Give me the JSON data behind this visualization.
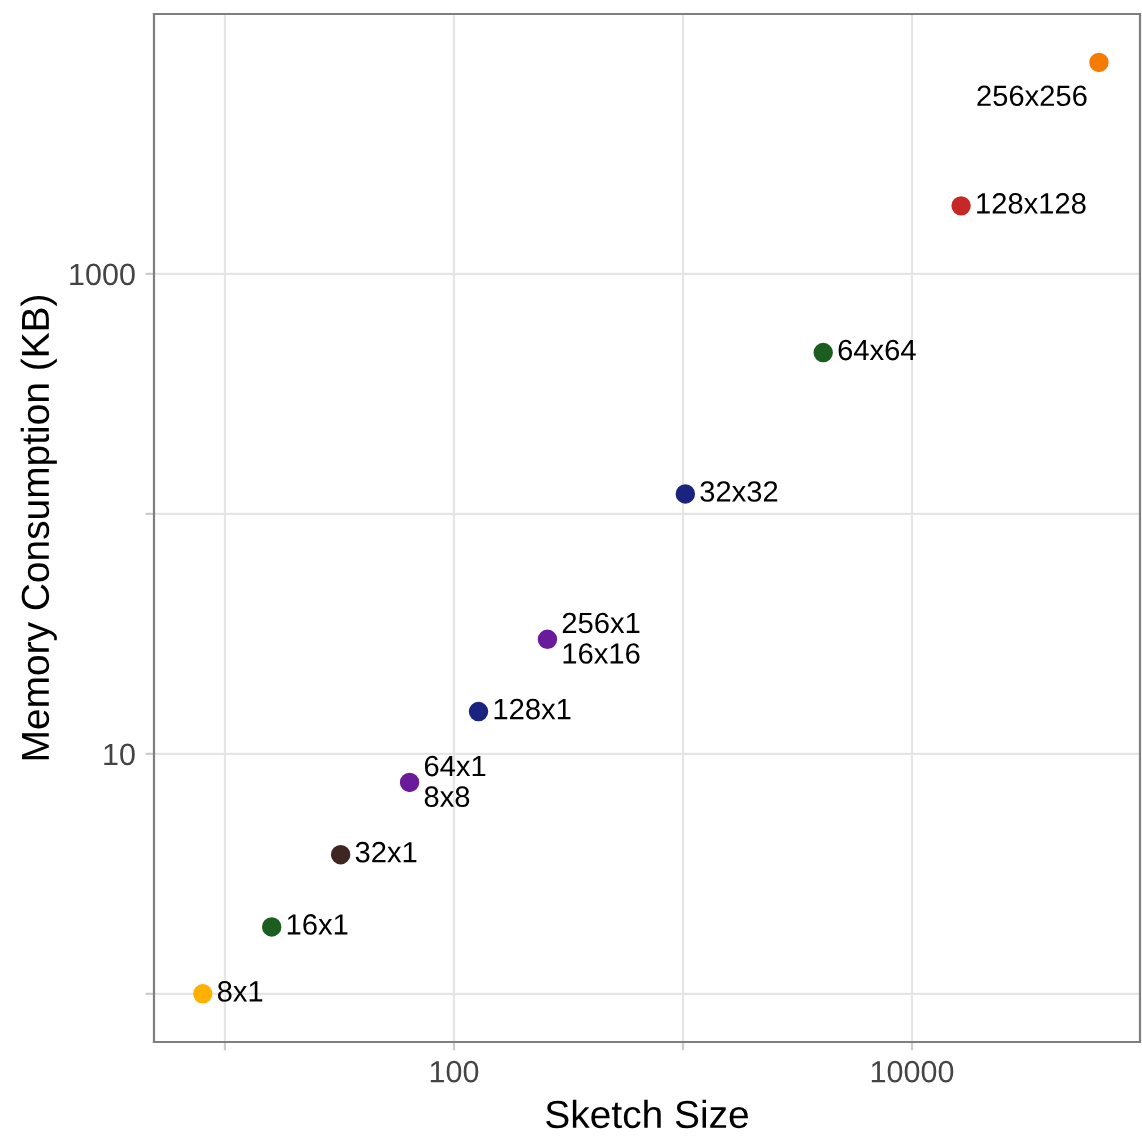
{
  "chart_data": {
    "type": "scatter",
    "xlabel": "Sketch Size",
    "ylabel": "Memory Consumption (KB)",
    "log": "xy",
    "grid": true,
    "marker": "circle",
    "xlim": [
      4.9,
      99000
    ],
    "ylim": [
      0.63,
      12100
    ],
    "xticks": [
      {
        "value": 10,
        "label": null
      },
      100,
      {
        "value": 1000,
        "label": null
      },
      10000
    ],
    "yticks": [
      {
        "value": 1,
        "label": null
      },
      10,
      {
        "value": 100,
        "label": null
      },
      1000
    ],
    "x": [
      8,
      16,
      32,
      64,
      128,
      256,
      1024,
      4096,
      16384,
      65536
    ],
    "values": [
      1,
      1.9,
      3.8,
      7.6,
      15,
      30,
      121,
      470,
      1920,
      7600
    ],
    "colors": [
      "#ffb000",
      "#1b5e20",
      "#3e2723",
      "#6a1b9a",
      "#1a237e",
      "#6a1b9a",
      "#1a237e",
      "#1b5e20",
      "#c62828",
      "#f57c00"
    ],
    "annotations": [
      {
        "text": "8x1",
        "x": 8,
        "y": 1
      },
      {
        "text": "16x1",
        "x": 16,
        "y": 1.9
      },
      {
        "text": "32x1",
        "x": 32,
        "y": 3.8
      },
      {
        "text": "64x1",
        "x": 64,
        "y": 7.6
      },
      {
        "text": "8x8",
        "x": 64,
        "y": 7.6
      },
      {
        "text": "128x1",
        "x": 128,
        "y": 15
      },
      {
        "text": "256x1",
        "x": 256,
        "y": 30
      },
      {
        "text": "16x16",
        "x": 256,
        "y": 30
      },
      {
        "text": "32x32",
        "x": 1024,
        "y": 121
      },
      {
        "text": "64x64",
        "x": 4096,
        "y": 470
      },
      {
        "text": "128x128",
        "x": 16384,
        "y": 1920
      },
      {
        "text": "256x256",
        "x": 65536,
        "y": 7600
      }
    ]
  }
}
